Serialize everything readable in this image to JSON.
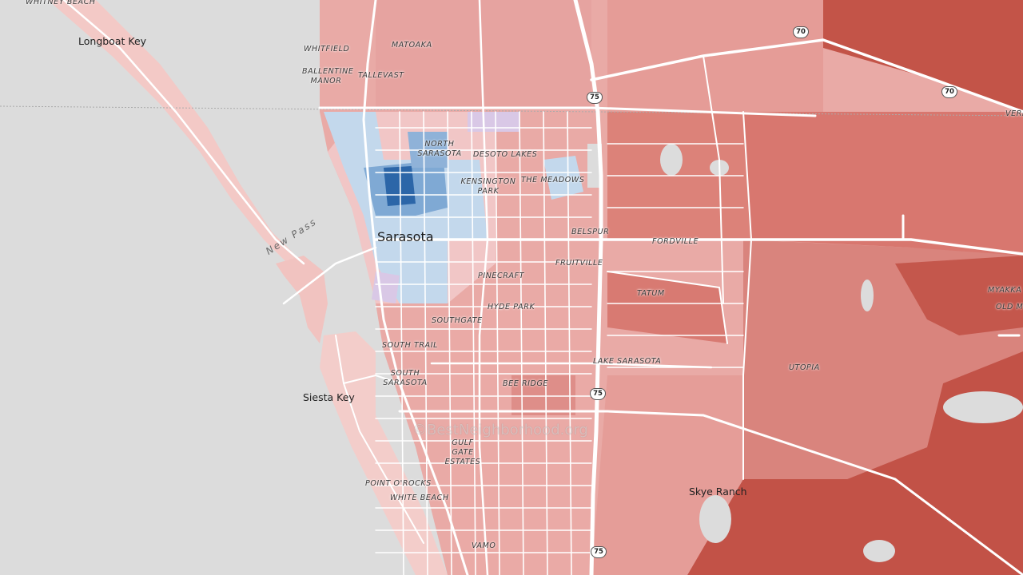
{
  "map": {
    "places": [
      {
        "id": "whitney-beach",
        "text": "WHITNEY BEACH"
      },
      {
        "id": "longboat-key",
        "text": "Longboat Key"
      },
      {
        "id": "whitfield",
        "text": "WHITFIELD"
      },
      {
        "id": "matoaka",
        "text": "MATOAKA"
      },
      {
        "id": "ballentine-manor",
        "text": "BALLENTINE MANOR"
      },
      {
        "id": "tallevast",
        "text": "TALLEVAST"
      },
      {
        "id": "north-sarasota",
        "text": "NORTH SARASOTA"
      },
      {
        "id": "desoto-lakes",
        "text": "DESOTO LAKES"
      },
      {
        "id": "kensington-park",
        "text": "KENSINGTON PARK"
      },
      {
        "id": "the-meadows",
        "text": "THE MEADOWS"
      },
      {
        "id": "sarasota",
        "text": "Sarasota"
      },
      {
        "id": "belspur",
        "text": "BELSPUR"
      },
      {
        "id": "fordville",
        "text": "FORDVILLE"
      },
      {
        "id": "fruitville",
        "text": "FRUITVILLE"
      },
      {
        "id": "pinecraft",
        "text": "PINECRAFT"
      },
      {
        "id": "tatum",
        "text": "TATUM"
      },
      {
        "id": "hyde-park",
        "text": "HYDE PARK"
      },
      {
        "id": "southgate",
        "text": "SOUTHGATE"
      },
      {
        "id": "south-trail",
        "text": "SOUTH TRAIL"
      },
      {
        "id": "lake-sarasota",
        "text": "LAKE SARASOTA"
      },
      {
        "id": "utopia",
        "text": "UTOPIA"
      },
      {
        "id": "south-sarasota",
        "text": "SOUTH SARASOTA"
      },
      {
        "id": "siesta-key",
        "text": "Siesta Key"
      },
      {
        "id": "bee-ridge",
        "text": "BEE RIDGE"
      },
      {
        "id": "gulf-gate-estates",
        "text": "GULF GATE ESTATES"
      },
      {
        "id": "point-o-rocks",
        "text": "POINT O'ROCKS"
      },
      {
        "id": "white-beach",
        "text": "WHITE BEACH"
      },
      {
        "id": "skye-ranch",
        "text": "Skye Ranch"
      },
      {
        "id": "vamo",
        "text": "VAMO"
      },
      {
        "id": "verna",
        "text": "VERN"
      },
      {
        "id": "myakka",
        "text": "MYAKKA"
      },
      {
        "id": "old-myakka",
        "text": "OLD M"
      }
    ],
    "water_labels": [
      {
        "id": "new-pass",
        "text": "New Pass"
      }
    ],
    "highway_shields": [
      {
        "id": "sr70-a",
        "text": "70"
      },
      {
        "id": "sr70-b",
        "text": "70"
      },
      {
        "id": "i75-a",
        "text": "75"
      },
      {
        "id": "i75-b",
        "text": "75"
      },
      {
        "id": "i75-c",
        "text": "75"
      }
    ],
    "watermark": "©BestNeighborhood.org",
    "colors": {
      "land": "#dcdcdc",
      "road": "#ffffff",
      "red_light": "#f1c6c6",
      "red_mid": "#e59a96",
      "red": "#d97770",
      "red_dark": "#c25247",
      "blue_light": "#c3d8ec",
      "blue_mid": "#7fa9d4",
      "blue_dark": "#2c66a8",
      "purple_light": "#d9c8e6"
    }
  }
}
